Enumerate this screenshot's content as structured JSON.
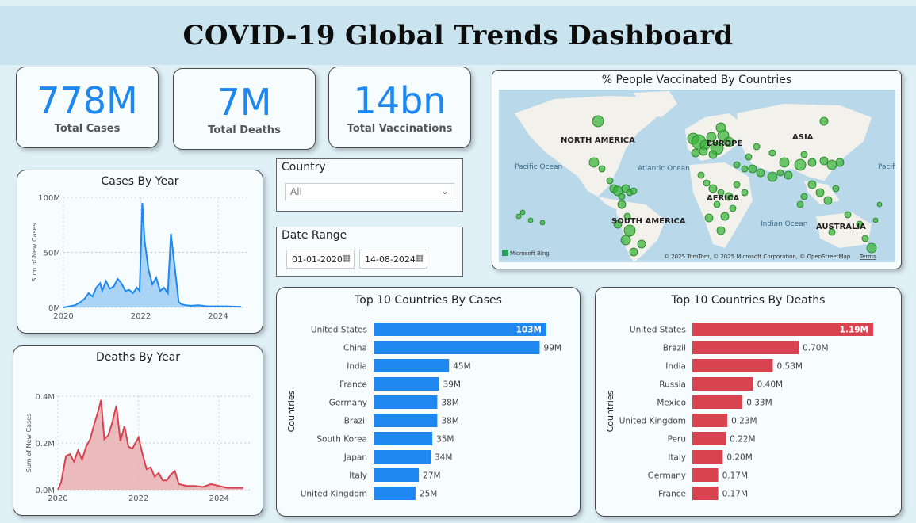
{
  "header": {
    "title": "COVID-19 Global Trends Dashboard"
  },
  "kpis": [
    {
      "value": "778M",
      "label": "Total Cases"
    },
    {
      "value": "7M",
      "label": "Total Deaths"
    },
    {
      "value": "14bn",
      "label": "Total Vaccinations"
    }
  ],
  "slicers": {
    "country": {
      "title": "Country",
      "value": "All"
    },
    "date_range": {
      "title": "Date Range",
      "start": "01-01-2020",
      "end": "14-08-2024"
    }
  },
  "map": {
    "title": "% People Vaccinated By Countries",
    "labels": {
      "north_america": "NORTH AMERICA",
      "europe": "EUROPE",
      "asia": "ASIA",
      "africa": "AFRICA",
      "south_america": "SOUTH AMERICA",
      "australia": "AUSTRALIA",
      "pacific": "Pacific Ocean",
      "atlantic": "Atlantic Ocean",
      "indian": "Indian Ocean",
      "pacific_right": "Pacific Ocean"
    },
    "attribution": "© 2025 TomTom, © 2025 Microsoft Corporation, © OpenStreetMap",
    "terms": "Terms",
    "logo_text": "Microsoft Bing",
    "bubble_color": "#3cb43c"
  },
  "colors": {
    "accent": "#1e88f0",
    "deaths": "#d9434f",
    "cases_area": "#9ccdf5",
    "deaths_area": "#e8aeb2"
  },
  "chart_data": [
    {
      "type": "area",
      "title": "Cases By Year",
      "ylabel": "Sum of New Cases",
      "xlabel": "",
      "x_ticks": [
        "2020",
        "2022",
        "2024"
      ],
      "y_ticks": [
        "0M",
        "50M",
        "100M"
      ],
      "ylim": [
        0,
        100
      ],
      "xlim": [
        2020,
        2024.8
      ],
      "x": [
        2020.0,
        2020.15,
        2020.3,
        2020.45,
        2020.55,
        2020.65,
        2020.75,
        2020.85,
        2020.95,
        2021.0,
        2021.1,
        2021.2,
        2021.3,
        2021.4,
        2021.5,
        2021.6,
        2021.7,
        2021.8,
        2021.9,
        2021.97,
        2022.04,
        2022.1,
        2022.2,
        2022.3,
        2022.4,
        2022.5,
        2022.6,
        2022.7,
        2022.78,
        2022.9,
        2022.98,
        2023.05,
        2023.15,
        2023.3,
        2023.5,
        2023.7,
        2023.9,
        2024.2,
        2024.6
      ],
      "y": [
        0,
        1,
        2,
        5,
        8,
        13,
        10,
        18,
        22,
        15,
        24,
        17,
        19,
        26,
        22,
        15,
        16,
        13,
        18,
        15,
        95,
        60,
        34,
        21,
        27,
        15,
        18,
        13,
        67,
        30,
        5,
        3,
        2,
        1.5,
        2,
        1,
        1,
        1,
        0.5
      ],
      "series_color": "#1e88f0"
    },
    {
      "type": "area",
      "title": "Deaths By Year",
      "ylabel": "Sum of New Cases",
      "xlabel": "",
      "x_ticks": [
        "2020",
        "2022",
        "2024"
      ],
      "y_ticks": [
        "0.0M",
        "0.2M",
        "0.4M"
      ],
      "ylim": [
        0,
        0.5
      ],
      "xlim": [
        2020,
        2024.8
      ],
      "x": [
        2020.0,
        2020.08,
        2020.2,
        2020.3,
        2020.4,
        2020.5,
        2020.6,
        2020.7,
        2020.8,
        2020.9,
        2021.0,
        2021.07,
        2021.15,
        2021.25,
        2021.35,
        2021.45,
        2021.55,
        2021.65,
        2021.75,
        2021.85,
        2022.0,
        2022.1,
        2022.2,
        2022.3,
        2022.4,
        2022.5,
        2022.6,
        2022.7,
        2022.8,
        2022.9,
        2023.0,
        2023.2,
        2023.4,
        2023.6,
        2023.8,
        2024.0,
        2024.2,
        2024.4,
        2024.6
      ],
      "y": [
        0,
        0.04,
        0.18,
        0.19,
        0.15,
        0.21,
        0.16,
        0.23,
        0.27,
        0.35,
        0.42,
        0.48,
        0.27,
        0.29,
        0.36,
        0.45,
        0.26,
        0.34,
        0.23,
        0.22,
        0.28,
        0.19,
        0.11,
        0.12,
        0.07,
        0.09,
        0.05,
        0.05,
        0.08,
        0.1,
        0.03,
        0.02,
        0.02,
        0.015,
        0.03,
        0.02,
        0.01,
        0.01,
        0.01
      ],
      "series_color": "#d9434f"
    },
    {
      "type": "bar",
      "orientation": "horizontal",
      "title": "Top 10 Countries By Cases",
      "ylabel": "Countries",
      "categories": [
        "United States",
        "China",
        "India",
        "France",
        "Germany",
        "Brazil",
        "South Korea",
        "Japan",
        "Italy",
        "United Kingdom"
      ],
      "values": [
        103,
        99,
        45,
        39,
        38,
        38,
        35,
        34,
        27,
        25
      ],
      "labels": [
        "103M",
        "99M",
        "45M",
        "39M",
        "38M",
        "38M",
        "35M",
        "34M",
        "27M",
        "25M"
      ],
      "series_color": "#1e88f0"
    },
    {
      "type": "bar",
      "orientation": "horizontal",
      "title": "Top 10 Countries By Deaths",
      "ylabel": "Countries",
      "categories": [
        "United States",
        "Brazil",
        "India",
        "Russia",
        "Mexico",
        "United Kingdom",
        "Peru",
        "Italy",
        "Germany",
        "France"
      ],
      "values": [
        1.19,
        0.7,
        0.53,
        0.4,
        0.33,
        0.23,
        0.22,
        0.2,
        0.17,
        0.17
      ],
      "labels": [
        "1.19M",
        "0.70M",
        "0.53M",
        "0.40M",
        "0.33M",
        "0.23M",
        "0.22M",
        "0.20M",
        "0.17M",
        "0.17M"
      ],
      "series_color": "#d9434f"
    }
  ]
}
